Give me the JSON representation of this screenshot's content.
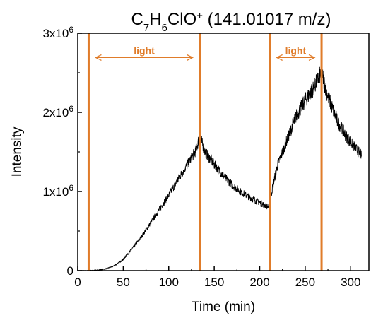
{
  "chart_data": {
    "type": "line",
    "title": {
      "parts": [
        {
          "text": "C",
          "baseline": "normal"
        },
        {
          "text": "7",
          "baseline": "sub"
        },
        {
          "text": "H",
          "baseline": "normal"
        },
        {
          "text": "6",
          "baseline": "sub"
        },
        {
          "text": "ClO",
          "baseline": "normal"
        },
        {
          "text": "+",
          "baseline": "super"
        },
        {
          "text": " (141.01017 m/z)",
          "baseline": "normal"
        }
      ]
    },
    "xlabel": "Time (min)",
    "ylabel": "Intensity",
    "xlim": [
      0,
      320
    ],
    "ylim": [
      0,
      3000000
    ],
    "x_ticks": [
      {
        "value": 0,
        "label": "0"
      },
      {
        "value": 50,
        "label": "50"
      },
      {
        "value": 100,
        "label": "100"
      },
      {
        "value": 150,
        "label": "150"
      },
      {
        "value": 200,
        "label": "200"
      },
      {
        "value": 250,
        "label": "250"
      },
      {
        "value": 300,
        "label": "300"
      }
    ],
    "y_ticks": [
      {
        "value": 0,
        "base": "0",
        "exp": ""
      },
      {
        "value": 1000000,
        "base": "1x10",
        "exp": "6"
      },
      {
        "value": 2000000,
        "base": "2x10",
        "exp": "6"
      },
      {
        "value": 3000000,
        "base": "3x10",
        "exp": "6"
      }
    ],
    "grid": false,
    "series": [
      {
        "color": "#000000",
        "x": [
          0,
          10,
          20,
          30,
          40,
          50,
          60,
          70,
          80,
          90,
          100,
          110,
          120,
          130,
          134,
          140,
          150,
          160,
          170,
          180,
          190,
          200,
          205,
          210,
          215,
          220,
          230,
          240,
          250,
          260,
          265,
          268,
          275,
          285,
          295,
          305,
          312
        ],
        "y": [
          0,
          0,
          5000,
          20000,
          60000,
          140000,
          280000,
          430000,
          600000,
          780000,
          950000,
          1150000,
          1330000,
          1520000,
          1700000,
          1500000,
          1340000,
          1200000,
          1080000,
          990000,
          920000,
          860000,
          830000,
          800000,
          1100000,
          1350000,
          1650000,
          1950000,
          2150000,
          2320000,
          2450000,
          2500000,
          2200000,
          1900000,
          1700000,
          1550000,
          1450000
        ]
      }
    ],
    "vlines": {
      "color": "#E07C2A",
      "x": [
        12,
        134,
        211,
        268
      ]
    },
    "annotations": [
      {
        "text": "light",
        "x_start": 12,
        "x_end": 134,
        "y": 2800000,
        "color": "#E07C2A"
      },
      {
        "text": "light",
        "x_start": 211,
        "x_end": 268,
        "y": 2800000,
        "color": "#E07C2A"
      }
    ]
  }
}
